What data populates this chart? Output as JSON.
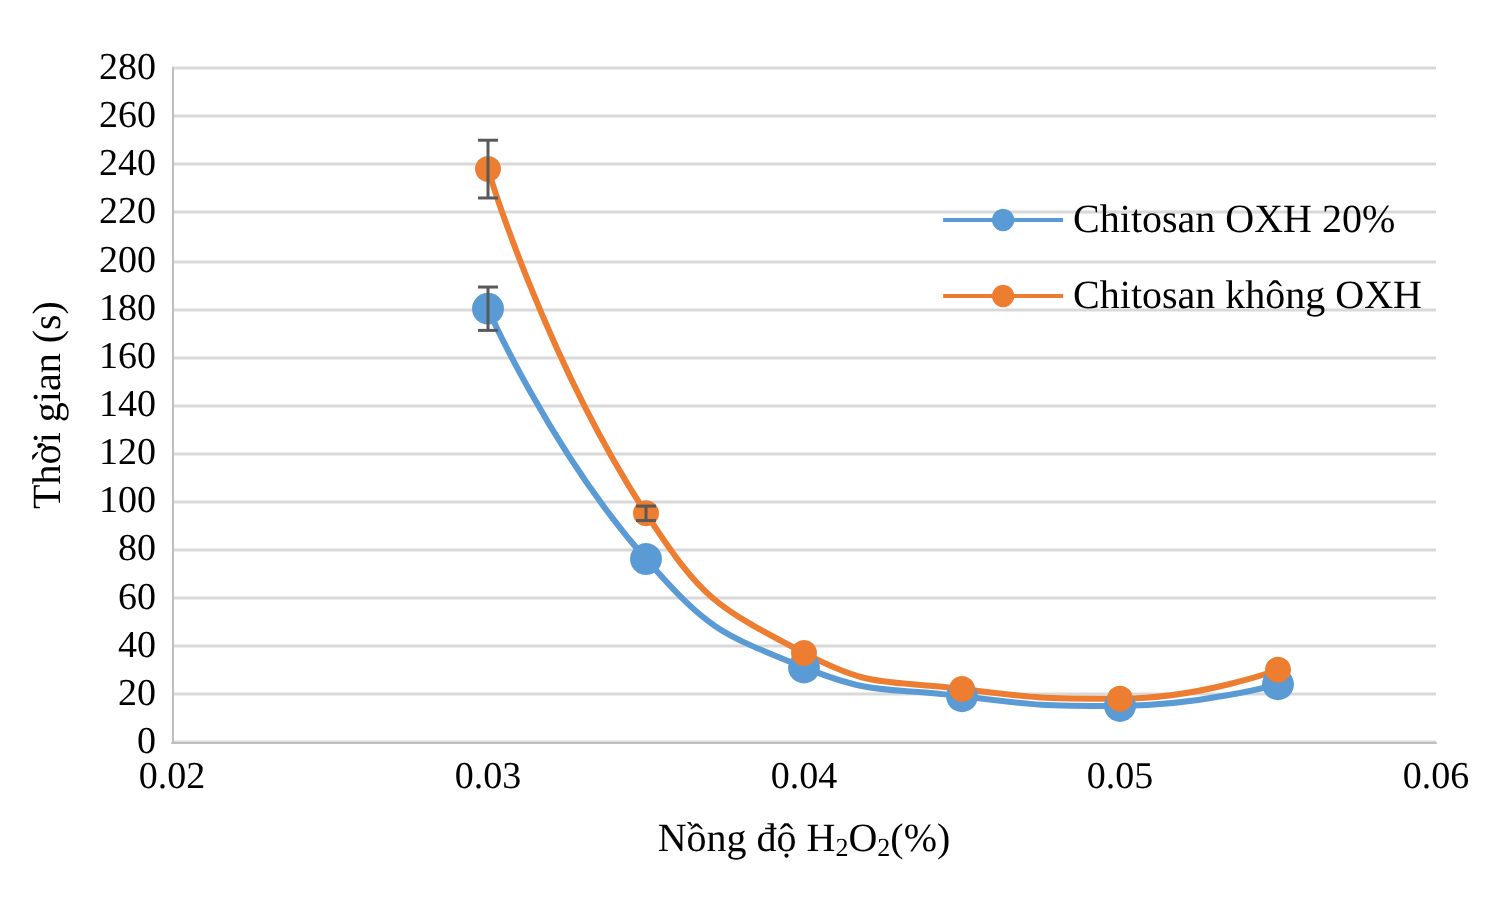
{
  "chart_data": {
    "type": "line",
    "xlabel": "Nồng độ H$_{2}$O$_{2}$(%)",
    "ylabel": "Thời gian (s)",
    "x": [
      0.03,
      0.035,
      0.04,
      0.045,
      0.05,
      0.055
    ],
    "series": [
      {
        "name": "Chitosan OXH 20%",
        "color": "#5b9bd5",
        "values": [
          180,
          76,
          31,
          19,
          15,
          24
        ],
        "errors": [
          9,
          null,
          null,
          null,
          null,
          null
        ]
      },
      {
        "name": "Chitosan không OXH",
        "color": "#ed7d31",
        "values": [
          238,
          95,
          37,
          22,
          18,
          30
        ],
        "errors": [
          12,
          3,
          null,
          null,
          null,
          null
        ]
      }
    ],
    "xlim": [
      0.02,
      0.06
    ],
    "xticks": [
      0.02,
      0.03,
      0.04,
      0.05,
      0.06
    ],
    "ylim": [
      0,
      280
    ],
    "yticks": [
      0,
      20,
      40,
      60,
      80,
      100,
      120,
      140,
      160,
      180,
      200,
      220,
      240,
      260,
      280
    ],
    "grid": "y",
    "legend": "top right",
    "marker": "circle",
    "line_style": "solid"
  }
}
